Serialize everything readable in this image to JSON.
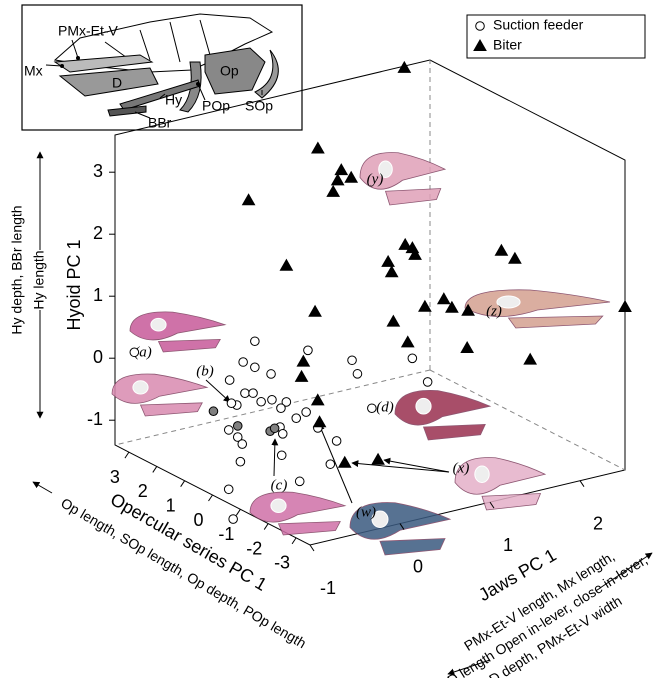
{
  "chart_data": {
    "type": "scatter3d",
    "x_label": "Jaws PC 1",
    "x_description": [
      "PMx-Et-V length, Mx length,",
      "D length Open in-lever, close in-lever,",
      "D depth, PMx-Et-V width"
    ],
    "y_label": "Opercular series PC 1",
    "y_description": "Op length, SOp length, Op depth, POp length",
    "z_label": "Hyoid PC 1",
    "z_description": [
      "Hy depth, BBr length",
      "Hy length"
    ],
    "xlim": [
      -1,
      2.5
    ],
    "xticks": [
      -1,
      0,
      1,
      2
    ],
    "ylim": [
      -3.5,
      3.5
    ],
    "yticks": [
      3,
      2,
      1,
      0,
      -1,
      -2,
      -3
    ],
    "zlim": [
      -1.4,
      3.6
    ],
    "zticks": [
      -1,
      0,
      1,
      2,
      3
    ],
    "legend": "top-right",
    "series": [
      {
        "name": "Suction feeder",
        "marker": "circle",
        "color": "#ffffff",
        "x": [
          -0.22,
          0.37,
          0.86,
          0.92,
          1.53,
          1.7,
          1.08,
          -0.35,
          -0.22,
          -0.5,
          -0.04,
          -0.33,
          -0.24,
          -0.42,
          -0.48,
          -0.15,
          -0.03,
          0.13,
          0.07,
          0.24,
          0.35,
          0.48,
          -0.51,
          -0.41,
          0.06,
          0.09,
          -0.24,
          -0.31,
          -0.69,
          -0.65,
          -0.82,
          -1.08,
          -0.85,
          -0.36,
          -0.94,
          -0.68,
          -0.41,
          -0.05,
          0.0
        ],
        "y": [
          1,
          1,
          1,
          1,
          1,
          1,
          1,
          1,
          1,
          1,
          1,
          1,
          1,
          1,
          1,
          1,
          1,
          1,
          1,
          1,
          1,
          1,
          1,
          1,
          1,
          1,
          -2,
          -2,
          0,
          -2,
          0,
          -1,
          -2,
          1,
          3,
          1,
          1,
          1,
          1
        ],
        "z": [
          0.58,
          0.23,
          -0.1,
          -0.34,
          -0.3,
          -0.74,
          -0.95,
          0.29,
          0.16,
          0.05,
          -0.01,
          -0.22,
          -0.25,
          -0.38,
          -0.33,
          -0.42,
          -0.43,
          -0.52,
          -0.6,
          -0.82,
          -0.76,
          -1.06,
          -0.75,
          -0.9,
          -0.9,
          -1.02,
          -0.33,
          -0.68,
          -0.97,
          -0.84,
          -1.37,
          -1.53,
          -0.35,
          -1.03,
          0.19,
          -0.39,
          -0.72,
          -0.93,
          -0.9
        ],
        "colors": [
          "#ffffff",
          "#ffffff",
          "#ffffff",
          "#ffffff",
          "#ffffff",
          "#ffffff",
          "#ffffff",
          "#ffffff",
          "#ffffff",
          "#ffffff",
          "#ffffff",
          "#ffffff",
          "#ffffff",
          "#ffffff",
          "#ffffff",
          "#ffffff",
          "#ffffff",
          "#ffffff",
          "#ffffff",
          "#ffffff",
          "#ffffff",
          "#ffffff",
          "#ffffff",
          "#ffffff",
          "#ffffff",
          "#ffffff",
          "#ffffff",
          "#ffffff",
          "#ffffff",
          "#ffffff",
          "#ffffff",
          "#ffffff",
          "#ffffff",
          "#ffffff",
          "#ffffff",
          "#808080",
          "#808080",
          "#808080",
          "#808080"
        ]
      },
      {
        "name": "Biter",
        "marker": "triangle",
        "color": "#000000",
        "x": [
          2.06,
          0.79,
          1.05,
          1.01,
          1.16,
          0.96,
          0.02,
          0.44,
          1.76,
          1.84,
          2.21,
          2.36,
          1.57,
          1.61,
          1.87,
          1.36,
          1.57,
          1.66,
          1.84,
          2.5,
          -0.17,
          0.7,
          1.52,
          2.22,
          0.86,
          -0.3,
          -0.32,
          -0.14,
          -0.12,
          0.16,
          0.53
        ],
        "y": [
          3,
          2,
          2,
          2,
          2,
          2,
          2,
          2,
          2,
          2,
          0,
          0,
          2,
          2,
          2,
          0,
          0,
          0,
          0,
          -3.5,
          -1,
          -1,
          -1,
          -1,
          -1,
          -1,
          -1,
          -1,
          -1,
          -1,
          -1
        ],
        "z": [
          3.74,
          3.11,
          2.67,
          2.52,
          2.51,
          2.35,
          2.54,
          1.34,
          1.22,
          1.14,
          1.43,
          1.25,
          1.01,
          0.83,
          1.02,
          0.82,
          0.87,
          0.7,
          0.59,
          1.23,
          1.5,
          1.04,
          0.33,
          -0.1,
          0.65,
          0.74,
          0.5,
          0.06,
          -0.3,
          -1.05,
          -1.13
        ]
      }
    ],
    "annotations": [
      "(a)",
      "(b)",
      "(c)",
      "(d)",
      "(w)",
      "(x)",
      "(y)",
      "(z)"
    ]
  },
  "inset": {
    "labels": [
      "PMx-Et-V",
      "Mx",
      "D",
      "Hy",
      "BBr",
      "POp",
      "Op",
      "SOp"
    ]
  }
}
